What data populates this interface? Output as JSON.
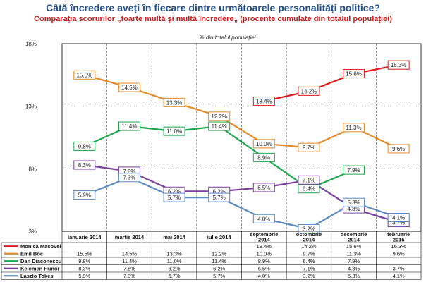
{
  "chart_data": {
    "type": "line",
    "title": "Câtă încredere aveți în fiecare dintre următoarele personalități politice?",
    "subtitle": "Comparația scorurilor „foarte multă și multă încredere„ (procente cumulate din totalul populației)",
    "ylabel": "% din totalul populației",
    "ylim": [
      3,
      18
    ],
    "yticks": [
      "3%",
      "8%",
      "13%",
      "18%"
    ],
    "ytick_values": [
      3,
      8,
      13,
      18
    ],
    "categories": [
      "ianuarie 2014",
      "martie 2014",
      "mai 2014",
      "iulie 2014",
      "septembrie 2014",
      "octombrie 2014",
      "decembrie 2014",
      "februarie 2015"
    ],
    "series": [
      {
        "name": "Monica Macovei",
        "color": "#e31a1c",
        "values": [
          null,
          null,
          null,
          null,
          13.4,
          14.2,
          15.6,
          16.3
        ],
        "labels": [
          "",
          "",
          "",
          "",
          "13.4%",
          "14.2%",
          "15.6%",
          "16.3%"
        ]
      },
      {
        "name": "Emil Boc",
        "color": "#e6892b",
        "values": [
          15.5,
          14.5,
          13.3,
          12.2,
          10.0,
          9.7,
          11.3,
          9.6
        ],
        "labels": [
          "15.5%",
          "14.5%",
          "13.3%",
          "12.2%",
          "10.0%",
          "9.7%",
          "11.3%",
          "9.6%"
        ]
      },
      {
        "name": "Dan Diaconescu",
        "color": "#1ea64c",
        "values": [
          9.8,
          11.4,
          11.0,
          11.4,
          8.9,
          6.4,
          7.9,
          null
        ],
        "labels": [
          "9.8%",
          "11.4%",
          "11.0%",
          "11.4%",
          "8.9%",
          "6.4%",
          "7.9%",
          ""
        ]
      },
      {
        "name": "Kelemen Hunor",
        "color": "#7b3fa0",
        "values": [
          8.3,
          7.8,
          6.2,
          6.2,
          6.5,
          7.1,
          4.8,
          3.7
        ],
        "labels": [
          "8.3%",
          "7.8%",
          "6.2%",
          "6.2%",
          "6.5%",
          "7.1%",
          "4.8%",
          "3.7%"
        ]
      },
      {
        "name": "Laszlo Tokes",
        "color": "#5b8ac6",
        "values": [
          5.9,
          7.3,
          5.7,
          5.7,
          4.0,
          3.2,
          5.3,
          4.1
        ],
        "labels": [
          "5.9%",
          "7.3%",
          "5.7%",
          "5.7%",
          "4.0%",
          "3.2%",
          "5.3%",
          "4.1%"
        ]
      }
    ]
  }
}
